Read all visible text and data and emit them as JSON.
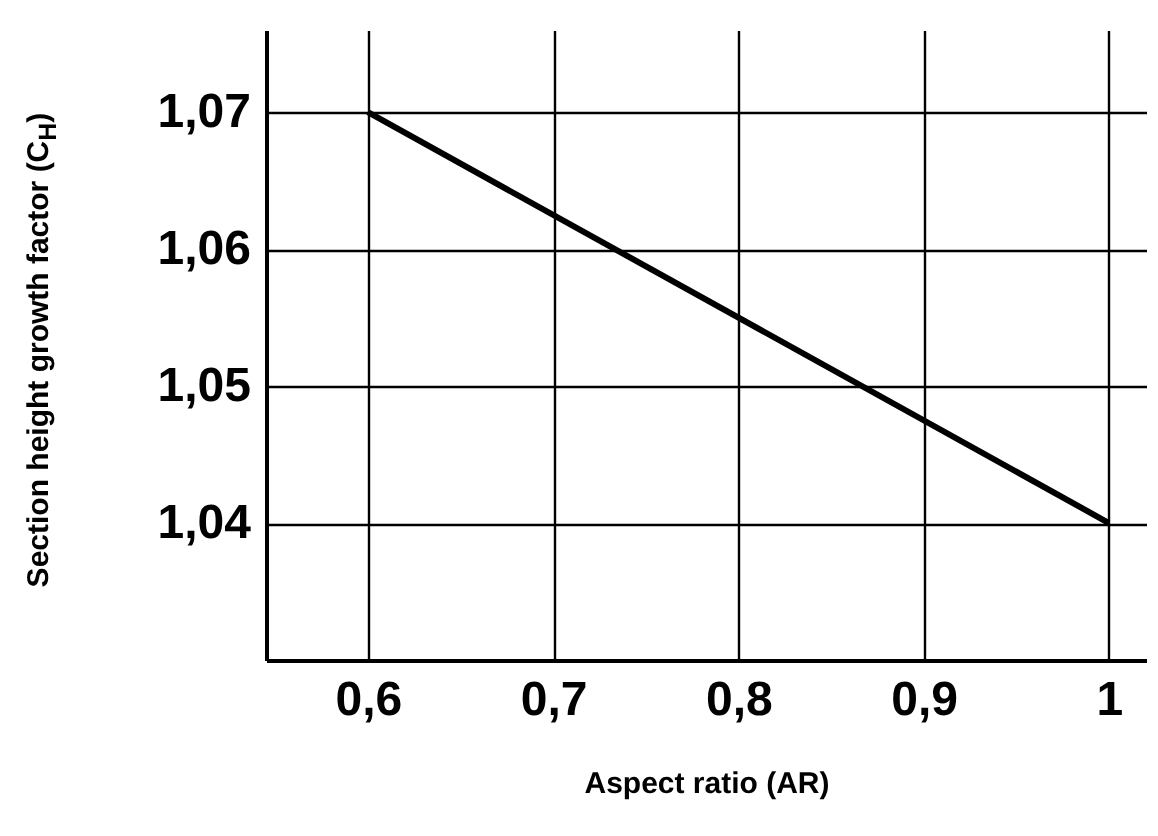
{
  "chart_data": {
    "type": "line",
    "xlabel": "Aspect ratio (AR)",
    "ylabel": "Section height growth factor (C$_{H}$)",
    "x": [
      0.6,
      1
    ],
    "series": [
      {
        "color": "#000000",
        "values": [
          1.07,
          1.04
        ]
      }
    ],
    "xlim": [
      0.545,
      1.02
    ],
    "ylim": [
      1.03,
      1.076
    ],
    "xticks": [
      {
        "value": 0.6,
        "label": "0,6"
      },
      {
        "value": 0.7,
        "label": "0,7"
      },
      {
        "value": 0.8,
        "label": "0,8"
      },
      {
        "value": 0.9,
        "label": "0,9"
      },
      {
        "value": 1,
        "label": "1"
      }
    ],
    "yticks": [
      {
        "value": 1.04,
        "label": "1,04"
      },
      {
        "value": 1.05,
        "label": "1,05"
      },
      {
        "value": 1.06,
        "label": "1,06"
      },
      {
        "value": 1.07,
        "label": "1,07"
      }
    ],
    "grid": true,
    "marker": "none",
    "line_style": "solid"
  }
}
